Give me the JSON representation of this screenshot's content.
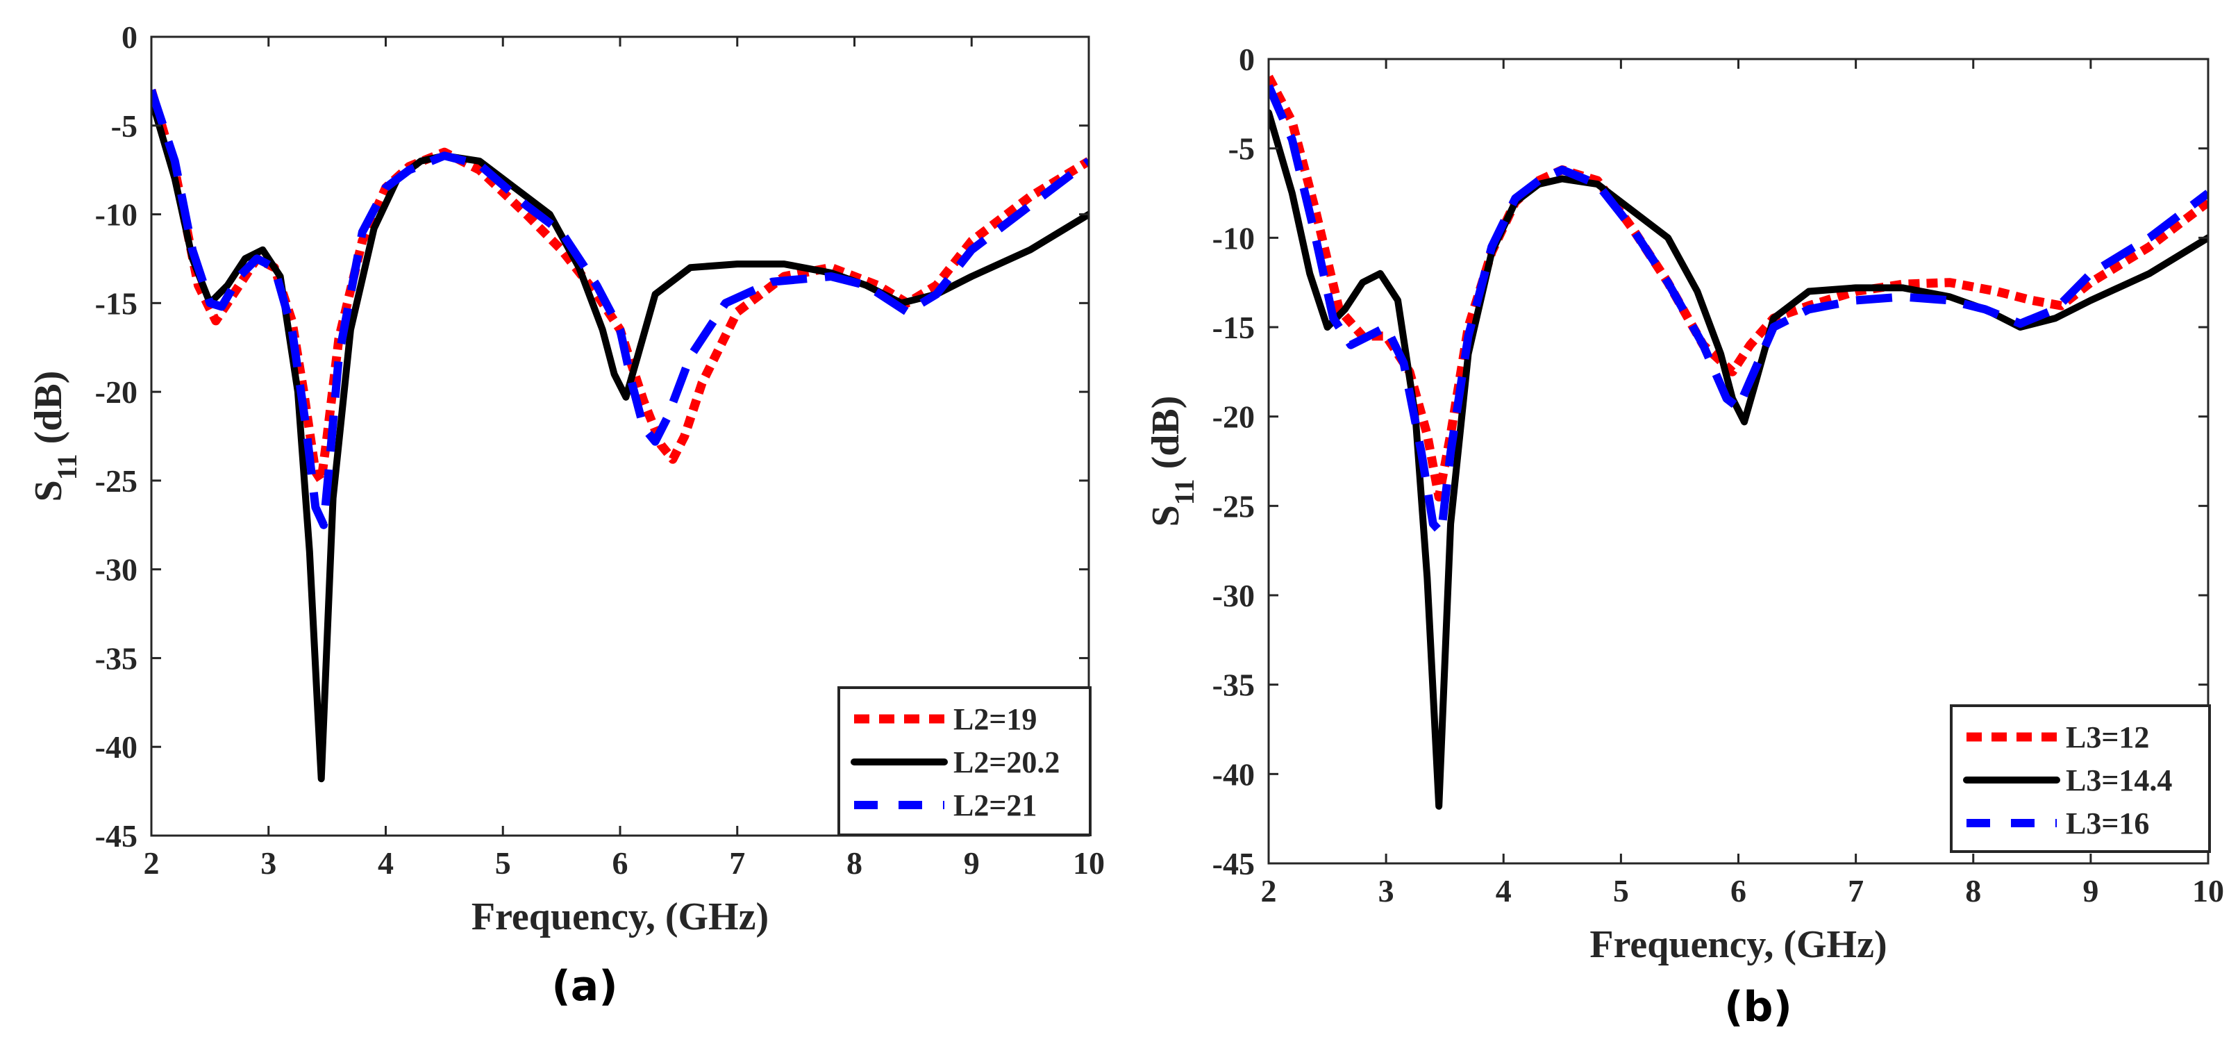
{
  "chart_data": [
    {
      "type": "line",
      "panel_label": "(a)",
      "xlabel": "Frequency, (GHz)",
      "ylabel_main": "S",
      "ylabel_sub": "11",
      "ylabel_unit": " (dB)",
      "xlim": [
        2,
        10
      ],
      "ylim": [
        -45,
        0
      ],
      "xticks": [
        2,
        3,
        4,
        5,
        6,
        7,
        8,
        9,
        10
      ],
      "yticks": [
        0,
        -5,
        -10,
        -15,
        -20,
        -25,
        -30,
        -35,
        -40,
        -45
      ],
      "legend_position": "bottom-right",
      "series": [
        {
          "name": "L2=19",
          "color": "#ff0000",
          "style": "dotted",
          "x": [
            2.0,
            2.2,
            2.4,
            2.55,
            2.7,
            2.9,
            3.05,
            3.2,
            3.3,
            3.4,
            3.45,
            3.5,
            3.6,
            3.8,
            4.0,
            4.2,
            4.5,
            4.8,
            5.2,
            5.5,
            5.8,
            6.0,
            6.2,
            6.35,
            6.45,
            6.55,
            6.7,
            7.0,
            7.4,
            7.8,
            8.2,
            8.45,
            8.7,
            9.0,
            9.5,
            10.0
          ],
          "y": [
            -3.0,
            -7.5,
            -14.0,
            -16.0,
            -14.5,
            -12.5,
            -13.0,
            -16.0,
            -20.0,
            -24.5,
            -25.0,
            -22.5,
            -17.0,
            -11.5,
            -8.5,
            -7.3,
            -6.5,
            -7.5,
            -10.0,
            -12.0,
            -14.5,
            -16.5,
            -20.5,
            -23.0,
            -23.8,
            -22.5,
            -19.5,
            -15.5,
            -13.5,
            -13.0,
            -14.0,
            -15.0,
            -14.0,
            -11.5,
            -9.0,
            -7.0
          ]
        },
        {
          "name": "L2=20.2",
          "color": "#000000",
          "style": "solid",
          "x": [
            2.0,
            2.2,
            2.35,
            2.5,
            2.65,
            2.8,
            2.95,
            3.1,
            3.25,
            3.35,
            3.42,
            3.45,
            3.48,
            3.55,
            3.7,
            3.9,
            4.1,
            4.3,
            4.5,
            4.8,
            5.1,
            5.4,
            5.65,
            5.85,
            5.95,
            6.05,
            6.15,
            6.3,
            6.6,
            7.0,
            7.4,
            7.8,
            8.1,
            8.4,
            8.7,
            9.0,
            9.5,
            10.0
          ],
          "y": [
            -3.5,
            -8.0,
            -12.5,
            -15.0,
            -14.0,
            -12.5,
            -12.0,
            -13.5,
            -20.0,
            -29.0,
            -38.0,
            -41.8,
            -37.0,
            -26.0,
            -16.5,
            -10.8,
            -8.0,
            -7.0,
            -6.7,
            -7.0,
            -8.5,
            -10.0,
            -13.0,
            -16.5,
            -19.0,
            -20.3,
            -18.0,
            -14.5,
            -13.0,
            -12.8,
            -12.8,
            -13.3,
            -14.0,
            -15.0,
            -14.5,
            -13.5,
            -12.0,
            -10.0
          ]
        },
        {
          "name": "L2=21",
          "color": "#0000ff",
          "style": "dashed",
          "x": [
            2.0,
            2.2,
            2.35,
            2.5,
            2.6,
            2.75,
            2.9,
            3.05,
            3.2,
            3.32,
            3.4,
            3.47,
            3.52,
            3.6,
            3.8,
            4.0,
            4.2,
            4.5,
            4.8,
            5.2,
            5.5,
            5.8,
            6.0,
            6.1,
            6.2,
            6.3,
            6.4,
            6.6,
            6.9,
            7.3,
            7.8,
            8.1,
            8.45,
            8.7,
            9.0,
            9.5,
            10.0
          ],
          "y": [
            -3.0,
            -7.0,
            -12.0,
            -15.0,
            -15.2,
            -13.5,
            -12.5,
            -13.0,
            -16.5,
            -22.0,
            -26.5,
            -27.5,
            -24.0,
            -18.0,
            -11.0,
            -8.5,
            -7.5,
            -6.7,
            -7.2,
            -9.5,
            -11.0,
            -14.0,
            -16.5,
            -19.5,
            -22.0,
            -22.8,
            -21.5,
            -18.0,
            -15.0,
            -13.8,
            -13.5,
            -14.0,
            -15.5,
            -14.5,
            -12.0,
            -9.5,
            -7.0
          ]
        }
      ]
    },
    {
      "type": "line",
      "panel_label": "(b)",
      "xlabel": "Frequency, (GHz)",
      "ylabel_main": "S",
      "ylabel_sub": "11",
      "ylabel_unit": " (dB)",
      "xlim": [
        2,
        10
      ],
      "ylim": [
        -45,
        0
      ],
      "xticks": [
        2,
        3,
        4,
        5,
        6,
        7,
        8,
        9,
        10
      ],
      "yticks": [
        0,
        -5,
        -10,
        -15,
        -20,
        -25,
        -30,
        -35,
        -40,
        -45
      ],
      "legend_position": "bottom-right",
      "series": [
        {
          "name": "L3=12",
          "color": "#ff0000",
          "style": "dotted",
          "x": [
            2.0,
            2.2,
            2.4,
            2.6,
            2.8,
            3.0,
            3.2,
            3.35,
            3.45,
            3.55,
            3.7,
            3.9,
            4.1,
            4.3,
            4.5,
            4.8,
            5.1,
            5.4,
            5.7,
            5.95,
            6.1,
            6.3,
            6.6,
            7.0,
            7.4,
            7.8,
            8.2,
            8.5,
            8.75,
            9.0,
            9.5,
            10.0
          ],
          "y": [
            -1.0,
            -3.5,
            -8.5,
            -14.0,
            -15.5,
            -15.5,
            -17.5,
            -21.0,
            -24.5,
            -21.0,
            -15.0,
            -10.8,
            -8.0,
            -6.8,
            -6.2,
            -6.8,
            -9.5,
            -12.5,
            -16.0,
            -17.5,
            -16.0,
            -14.5,
            -13.8,
            -13.0,
            -12.6,
            -12.5,
            -13.0,
            -13.5,
            -13.8,
            -12.5,
            -10.5,
            -8.0
          ]
        },
        {
          "name": "L3=14.4",
          "color": "#000000",
          "style": "solid",
          "x": [
            2.0,
            2.2,
            2.35,
            2.5,
            2.65,
            2.8,
            2.95,
            3.1,
            3.25,
            3.35,
            3.42,
            3.45,
            3.48,
            3.55,
            3.7,
            3.9,
            4.1,
            4.3,
            4.5,
            4.8,
            5.1,
            5.4,
            5.65,
            5.85,
            5.95,
            6.05,
            6.15,
            6.3,
            6.6,
            7.0,
            7.4,
            7.8,
            8.1,
            8.4,
            8.7,
            9.0,
            9.5,
            10.0
          ],
          "y": [
            -3.0,
            -7.5,
            -12.0,
            -15.0,
            -14.0,
            -12.5,
            -12.0,
            -13.5,
            -20.0,
            -29.0,
            -38.0,
            -41.8,
            -37.0,
            -26.0,
            -16.5,
            -10.8,
            -8.0,
            -7.0,
            -6.7,
            -7.0,
            -8.5,
            -10.0,
            -13.0,
            -16.5,
            -19.0,
            -20.3,
            -18.0,
            -14.5,
            -13.0,
            -12.8,
            -12.8,
            -13.3,
            -14.0,
            -15.0,
            -14.5,
            -13.5,
            -12.0,
            -10.0
          ]
        },
        {
          "name": "L3=16",
          "color": "#0000ff",
          "style": "dashed",
          "x": [
            2.0,
            2.2,
            2.4,
            2.55,
            2.7,
            2.85,
            3.0,
            3.15,
            3.3,
            3.4,
            3.47,
            3.55,
            3.7,
            3.9,
            4.1,
            4.3,
            4.5,
            4.8,
            5.1,
            5.4,
            5.7,
            5.9,
            6.0,
            6.1,
            6.3,
            6.6,
            7.0,
            7.4,
            7.8,
            8.1,
            8.4,
            8.7,
            9.0,
            9.5,
            10.0
          ],
          "y": [
            -1.5,
            -4.5,
            -10.0,
            -14.5,
            -16.0,
            -15.5,
            -15.0,
            -17.0,
            -22.0,
            -26.0,
            -26.5,
            -22.0,
            -15.5,
            -10.5,
            -7.8,
            -6.8,
            -6.2,
            -7.0,
            -9.5,
            -12.5,
            -16.0,
            -19.0,
            -19.5,
            -18.0,
            -15.0,
            -14.0,
            -13.5,
            -13.3,
            -13.5,
            -14.0,
            -14.8,
            -14.0,
            -12.0,
            -10.0,
            -7.5
          ]
        }
      ]
    }
  ]
}
